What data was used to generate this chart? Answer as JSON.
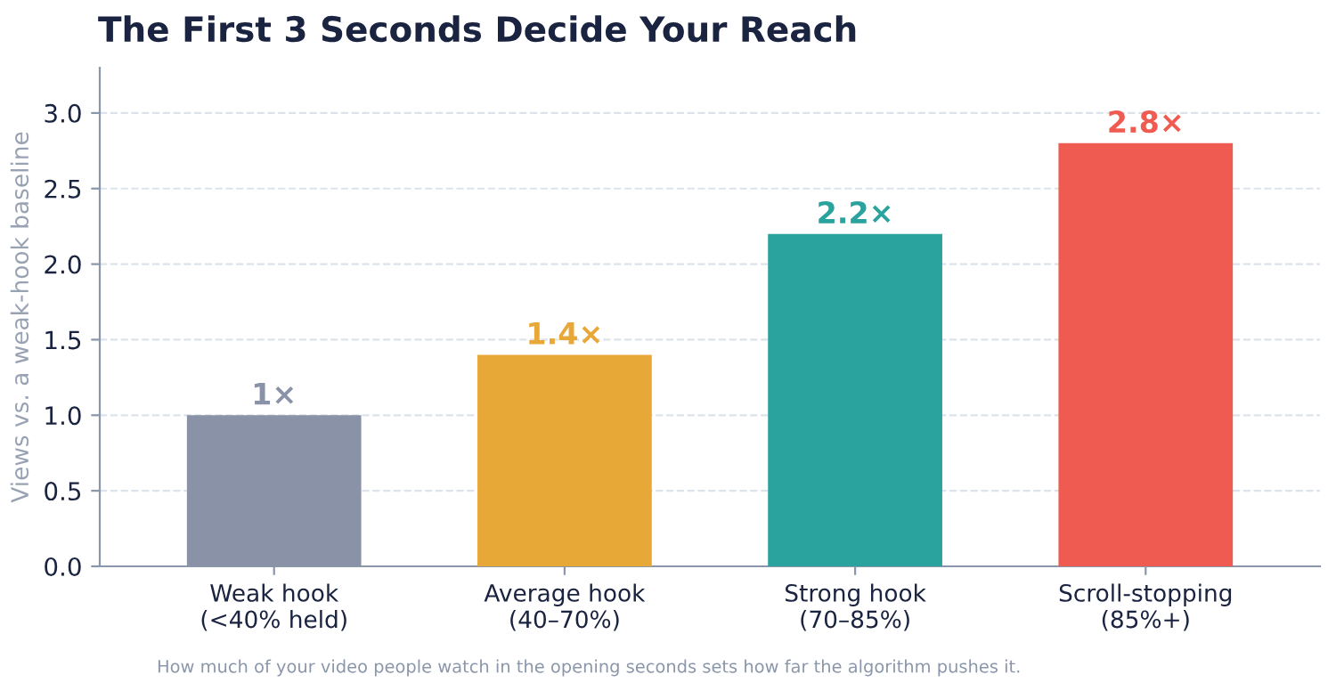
{
  "chart_data": {
    "type": "bar",
    "title": "The First 3 Seconds Decide Your Reach",
    "ylabel": "Views vs. a weak-hook baseline",
    "categories": [
      "Weak hook\n(<40% held)",
      "Average hook\n(40–70%)",
      "Strong hook\n(70–85%)",
      "Scroll-stopping\n(85%+)"
    ],
    "values": [
      1.0,
      1.4,
      2.2,
      2.8
    ],
    "colors": [
      "#8a92a8",
      "#e8a838",
      "#2aa39e",
      "#ef5b50"
    ],
    "value_labels": [
      "1×",
      "1.4×",
      "2.2×",
      "2.8×"
    ],
    "ylim": [
      0,
      3.3
    ],
    "yticks": [
      {
        "value": 0,
        "label": "0.0"
      },
      {
        "value": 0.5,
        "label": "0.5"
      },
      {
        "value": 1,
        "label": "1.0"
      },
      {
        "value": 1.5,
        "label": "1.5"
      },
      {
        "value": 2,
        "label": "2.0"
      },
      {
        "value": 2.5,
        "label": "2.5"
      },
      {
        "value": 3,
        "label": "3.0"
      }
    ],
    "grid": "y",
    "annotations": [
      "How much of your video people watch in the opening seconds sets how far the algorithm pushes it."
    ]
  }
}
